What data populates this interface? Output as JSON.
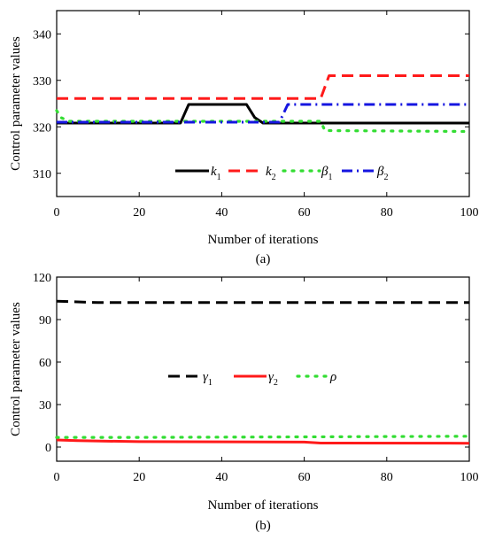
{
  "chart_data": [
    {
      "type": "line",
      "caption": "(a)",
      "xlabel": "Number of iterations",
      "ylabel": "Control parameter values",
      "xlim": [
        0,
        100
      ],
      "ylim": [
        305,
        345
      ],
      "xticks": [
        0,
        20,
        40,
        60,
        80,
        100
      ],
      "yticks": [
        310,
        320,
        330,
        340
      ],
      "legend_position": "bottom-center",
      "grid": false,
      "series": [
        {
          "name": "k",
          "sub": "1",
          "color": "#000000",
          "style": "solid",
          "x": [
            0,
            30,
            32,
            46,
            48,
            50,
            100
          ],
          "y": [
            320.8,
            320.8,
            324.8,
            324.8,
            322.0,
            320.8,
            320.8
          ]
        },
        {
          "name": "k",
          "sub": "2",
          "color": "#ff1a1a",
          "style": "dash",
          "x": [
            0,
            64,
            66,
            100
          ],
          "y": [
            326.1,
            326.1,
            331.0,
            331.0
          ]
        },
        {
          "name": "β",
          "sub": "1",
          "color": "#33dd33",
          "style": "dot",
          "x": [
            0,
            1,
            3,
            64,
            65,
            100
          ],
          "y": [
            323.5,
            322.0,
            321.2,
            321.2,
            319.2,
            319.0
          ]
        },
        {
          "name": "β",
          "sub": "2",
          "color": "#1515e0",
          "style": "dashdot",
          "x": [
            0,
            54,
            56,
            100
          ],
          "y": [
            321.0,
            321.0,
            324.8,
            324.8
          ]
        }
      ]
    },
    {
      "type": "line",
      "caption": "(b)",
      "xlabel": "Number of iterations",
      "ylabel": "Control parameter values",
      "xlim": [
        0,
        100
      ],
      "ylim": [
        -10,
        120
      ],
      "xticks": [
        0,
        20,
        40,
        60,
        80,
        100
      ],
      "yticks": [
        0,
        30,
        60,
        90,
        120
      ],
      "legend_position": "center",
      "grid": false,
      "series": [
        {
          "name": "γ",
          "sub": "1",
          "color": "#000000",
          "style": "dash",
          "x": [
            0,
            10,
            100
          ],
          "y": [
            103.0,
            102.0,
            102.0
          ]
        },
        {
          "name": "γ",
          "sub": "2",
          "color": "#ff1a1a",
          "style": "solid",
          "x": [
            0,
            5,
            20,
            60,
            64,
            100
          ],
          "y": [
            5.0,
            4.5,
            3.8,
            3.5,
            2.8,
            2.7
          ]
        },
        {
          "name": "ρ",
          "sub": "",
          "color": "#33dd33",
          "style": "dot",
          "x": [
            0,
            20,
            60,
            100
          ],
          "y": [
            6.8,
            6.8,
            7.2,
            7.6
          ]
        }
      ]
    }
  ]
}
